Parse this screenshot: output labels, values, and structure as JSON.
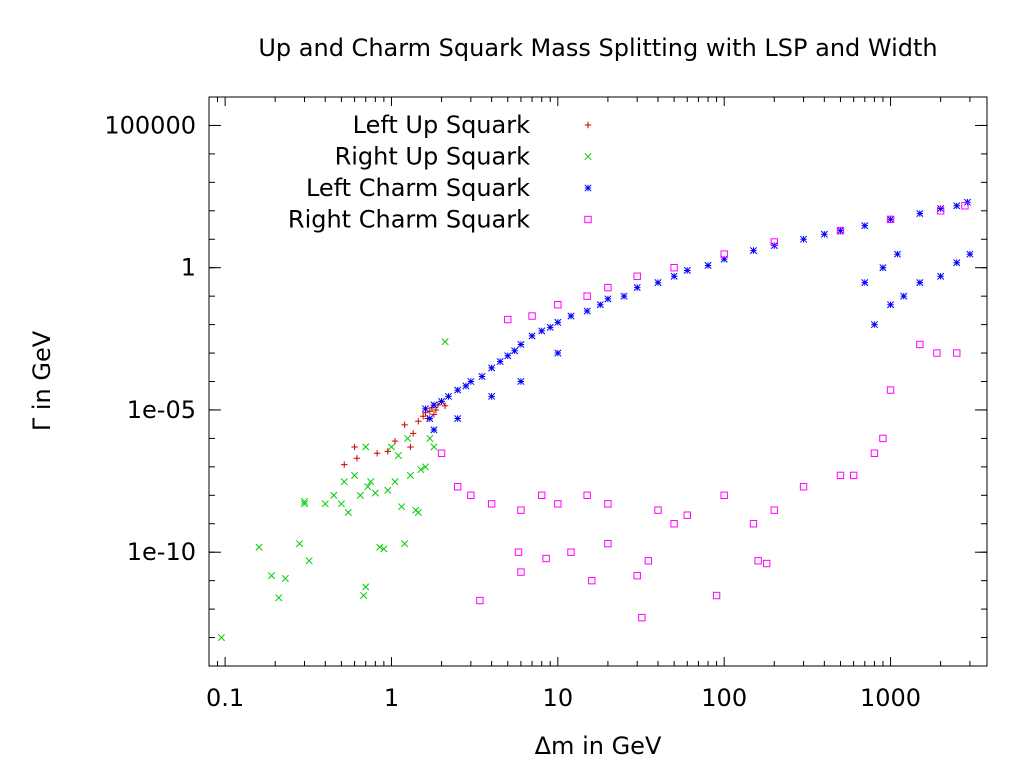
{
  "chart_data": {
    "type": "scatter",
    "title": "Up and Charm Squark Mass Splitting with LSP and Width",
    "xlabel": "Δm in GeV",
    "ylabel": "Γ in GeV",
    "xscale": "log",
    "yscale": "log",
    "xlim": [
      0.08,
      3800
    ],
    "ylim": [
      1e-14,
      1000000.0
    ],
    "xticks": [
      {
        "value": 0.1,
        "label": "0.1"
      },
      {
        "value": 1,
        "label": "1"
      },
      {
        "value": 10,
        "label": "10"
      },
      {
        "value": 100,
        "label": "100"
      },
      {
        "value": 1000,
        "label": "1000"
      }
    ],
    "yticks": [
      {
        "value": 100000.0,
        "label": "100000"
      },
      {
        "value": 1,
        "label": "1"
      },
      {
        "value": 1e-05,
        "label": "1e-05"
      },
      {
        "value": 1e-10,
        "label": "1e-10"
      }
    ],
    "legend_position": "top-left",
    "series": [
      {
        "name": "Left Up Squark",
        "marker": "plus",
        "color": "#cc0000",
        "points": [
          [
            0.52,
            1.2e-07
          ],
          [
            0.6,
            5e-07
          ],
          [
            0.62,
            2e-07
          ],
          [
            0.82,
            3e-07
          ],
          [
            0.95,
            3.5e-07
          ],
          [
            1.05,
            8e-07
          ],
          [
            1.2,
            3e-06
          ],
          [
            1.3,
            5e-07
          ],
          [
            1.35,
            1.5e-06
          ],
          [
            1.45,
            4e-06
          ],
          [
            1.55,
            6e-06
          ],
          [
            1.6,
            8e-06
          ],
          [
            1.65,
            5e-06
          ],
          [
            1.7,
            9e-06
          ],
          [
            1.75,
            1.2e-05
          ],
          [
            1.8,
            7e-06
          ],
          [
            1.85,
            1e-05
          ],
          [
            1.9,
            1.5e-05
          ],
          [
            2.0,
            2e-05
          ],
          [
            2.1,
            1.4e-05
          ]
        ]
      },
      {
        "name": "Right Up Squark",
        "marker": "cross",
        "color": "#00cc00",
        "points": [
          [
            0.095,
            1e-13
          ],
          [
            0.16,
            1.5e-10
          ],
          [
            0.19,
            1.5e-11
          ],
          [
            0.21,
            2.5e-12
          ],
          [
            0.23,
            1.2e-11
          ],
          [
            0.28,
            2e-10
          ],
          [
            0.3,
            6e-09
          ],
          [
            0.3,
            5e-09
          ],
          [
            0.32,
            5e-11
          ],
          [
            0.4,
            5e-09
          ],
          [
            0.45,
            1e-08
          ],
          [
            0.5,
            5e-09
          ],
          [
            0.52,
            3e-08
          ],
          [
            0.55,
            2.5e-09
          ],
          [
            0.6,
            5e-08
          ],
          [
            0.65,
            1e-08
          ],
          [
            0.68,
            3e-12
          ],
          [
            0.7,
            6e-12
          ],
          [
            0.72,
            2e-08
          ],
          [
            0.75,
            3e-08
          ],
          [
            0.8,
            1.2e-08
          ],
          [
            0.85,
            1.5e-10
          ],
          [
            0.9,
            1.3e-10
          ],
          [
            0.95,
            1.5e-08
          ],
          [
            1.0,
            5e-07
          ],
          [
            1.05,
            3e-08
          ],
          [
            1.1,
            2.5e-07
          ],
          [
            1.15,
            4e-09
          ],
          [
            1.2,
            2e-10
          ],
          [
            1.3,
            5e-08
          ],
          [
            1.4,
            3e-09
          ],
          [
            1.45,
            2.5e-09
          ],
          [
            1.5,
            8e-08
          ],
          [
            1.6,
            1e-07
          ],
          [
            1.7,
            1e-06
          ],
          [
            1.8,
            5e-07
          ],
          [
            2.1,
            0.0025
          ],
          [
            1.25,
            1e-06
          ],
          [
            0.7,
            5e-07
          ]
        ]
      },
      {
        "name": "Left Charm Squark",
        "marker": "star",
        "color": "#0000ff",
        "points": [
          [
            1.6,
            1.1e-05
          ],
          [
            1.7,
            5e-06
          ],
          [
            1.8,
            1.5e-05
          ],
          [
            2.0,
            2e-05
          ],
          [
            2.2,
            3e-05
          ],
          [
            2.5,
            5e-05
          ],
          [
            2.8,
            7e-05
          ],
          [
            3.0,
            0.0001
          ],
          [
            3.5,
            0.00015
          ],
          [
            4.0,
            0.0003
          ],
          [
            4.5,
            0.0005
          ],
          [
            5.0,
            0.0008
          ],
          [
            5.5,
            0.0012
          ],
          [
            6.0,
            0.002
          ],
          [
            7.0,
            0.004
          ],
          [
            8.0,
            0.006
          ],
          [
            9.0,
            0.008
          ],
          [
            10.0,
            0.012
          ],
          [
            12.0,
            0.02
          ],
          [
            15.0,
            0.03
          ],
          [
            18.0,
            0.05
          ],
          [
            20.0,
            0.08
          ],
          [
            25.0,
            0.1
          ],
          [
            30.0,
            0.2
          ],
          [
            40.0,
            0.3
          ],
          [
            50.0,
            0.5
          ],
          [
            60.0,
            0.8
          ],
          [
            80.0,
            1.2
          ],
          [
            100.0,
            2
          ],
          [
            150.0,
            4
          ],
          [
            200.0,
            6
          ],
          [
            300.0,
            10
          ],
          [
            400.0,
            15
          ],
          [
            500.0,
            20
          ],
          [
            700.0,
            30
          ],
          [
            1000.0,
            50
          ],
          [
            1500.0,
            80
          ],
          [
            2000.0,
            120
          ],
          [
            2500.0,
            150
          ],
          [
            2900.0,
            200
          ],
          [
            1.8,
            2e-06
          ],
          [
            2.5,
            5e-06
          ],
          [
            4.0,
            3e-05
          ],
          [
            6.0,
            0.0001
          ],
          [
            10.0,
            0.001
          ],
          [
            800.0,
            0.01
          ],
          [
            1000.0,
            0.05
          ],
          [
            1200.0,
            0.1
          ],
          [
            1500.0,
            0.3
          ],
          [
            2000.0,
            0.5
          ],
          [
            2500.0,
            1.5
          ],
          [
            3000.0,
            3
          ],
          [
            900.0,
            1
          ],
          [
            1100.0,
            3
          ],
          [
            700.0,
            0.3
          ]
        ]
      },
      {
        "name": "Right Charm Squark",
        "marker": "square",
        "color": "#ff00ff",
        "points": [
          [
            3.4,
            2e-12
          ],
          [
            5.8,
            1e-10
          ],
          [
            6.0,
            2e-11
          ],
          [
            8.5,
            6e-11
          ],
          [
            12.0,
            1e-10
          ],
          [
            16.0,
            1e-11
          ],
          [
            20.0,
            2e-10
          ],
          [
            30.0,
            1.5e-11
          ],
          [
            32.0,
            5e-13
          ],
          [
            35.0,
            5e-11
          ],
          [
            50.0,
            1e-09
          ],
          [
            90.0,
            3e-12
          ],
          [
            150.0,
            1e-09
          ],
          [
            160.0,
            5e-11
          ],
          [
            180.0,
            4e-11
          ],
          [
            200.0,
            3e-09
          ],
          [
            500.0,
            5e-08
          ],
          [
            900.0,
            1e-06
          ],
          [
            1500.0,
            0.002
          ],
          [
            1900.0,
            0.001
          ],
          [
            2500.0,
            0.001
          ],
          [
            5.0,
            0.015
          ],
          [
            7.0,
            0.02
          ],
          [
            10.0,
            0.05
          ],
          [
            15.0,
            0.1
          ],
          [
            20.0,
            0.2
          ],
          [
            30.0,
            0.5
          ],
          [
            50.0,
            1
          ],
          [
            100.0,
            3
          ],
          [
            200.0,
            8
          ],
          [
            500.0,
            20
          ],
          [
            1000.0,
            50
          ],
          [
            2000.0,
            100
          ],
          [
            2800.0,
            150
          ],
          [
            2.0,
            3e-07
          ],
          [
            2.5,
            2e-08
          ],
          [
            3.0,
            1e-08
          ],
          [
            4.0,
            5e-09
          ],
          [
            6.0,
            3e-09
          ],
          [
            8.0,
            1e-08
          ],
          [
            10.0,
            5e-09
          ],
          [
            15.0,
            1e-08
          ],
          [
            20.0,
            5e-09
          ],
          [
            40.0,
            3e-09
          ],
          [
            60.0,
            2e-09
          ],
          [
            100.0,
            1e-08
          ],
          [
            300.0,
            2e-08
          ],
          [
            600.0,
            5e-08
          ],
          [
            800.0,
            3e-07
          ],
          [
            1000.0,
            5e-05
          ]
        ]
      }
    ]
  }
}
